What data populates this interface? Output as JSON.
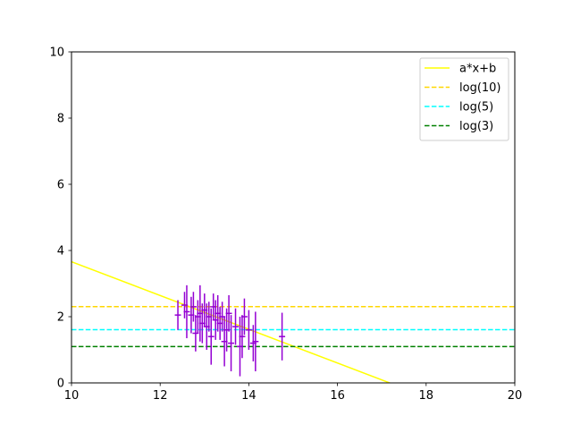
{
  "chart_data": {
    "type": "scatter",
    "title": "",
    "xlabel": "",
    "ylabel": "",
    "xlim": [
      10,
      20
    ],
    "ylim": [
      0,
      10
    ],
    "grid": false,
    "x_ticks": [
      "10",
      "12",
      "14",
      "16",
      "18",
      "20"
    ],
    "y_ticks": [
      "0",
      "2",
      "4",
      "6",
      "8",
      "10"
    ],
    "legend": {
      "placement": "top-right",
      "entries": [
        "a*x+b",
        "log(10)",
        "log(5)",
        "log(3)"
      ]
    },
    "lines": [
      {
        "name": "a*x+b",
        "kind": "linear",
        "slope": -0.51,
        "intercept": 8.76,
        "color": "#ffff00",
        "dash": "solid"
      },
      {
        "name": "log(10)",
        "kind": "hline",
        "y": 2.302585,
        "color": "#ffd700",
        "dash": "dashed"
      },
      {
        "name": "log(5)",
        "kind": "hline",
        "y": 1.609438,
        "color": "#00ffff",
        "dash": "dashed"
      },
      {
        "name": "log(3)",
        "kind": "hline",
        "y": 1.098612,
        "color": "#008000",
        "dash": "dashed"
      }
    ],
    "errorbar_series": {
      "color": "#9400d3",
      "points": [
        {
          "x": 12.4,
          "y": 2.05,
          "yerr": 0.45,
          "xerr": 0.07
        },
        {
          "x": 12.55,
          "y": 2.35,
          "yerr": 0.4,
          "xerr": 0.07
        },
        {
          "x": 12.6,
          "y": 2.15,
          "yerr": 0.8,
          "xerr": 0.07
        },
        {
          "x": 12.7,
          "y": 2.05,
          "yerr": 0.55,
          "xerr": 0.07
        },
        {
          "x": 12.75,
          "y": 2.3,
          "yerr": 0.45,
          "xerr": 0.07
        },
        {
          "x": 12.8,
          "y": 1.5,
          "yerr": 0.55,
          "xerr": 0.07
        },
        {
          "x": 12.85,
          "y": 2.0,
          "yerr": 0.5,
          "xerr": 0.07
        },
        {
          "x": 12.9,
          "y": 2.1,
          "yerr": 0.85,
          "xerr": 0.07
        },
        {
          "x": 12.95,
          "y": 1.8,
          "yerr": 0.6,
          "xerr": 0.07
        },
        {
          "x": 13.0,
          "y": 2.2,
          "yerr": 0.5,
          "xerr": 0.07
        },
        {
          "x": 13.05,
          "y": 1.7,
          "yerr": 0.7,
          "xerr": 0.07
        },
        {
          "x": 13.1,
          "y": 2.0,
          "yerr": 0.45,
          "xerr": 0.07
        },
        {
          "x": 13.15,
          "y": 1.4,
          "yerr": 0.85,
          "xerr": 0.07
        },
        {
          "x": 13.2,
          "y": 2.3,
          "yerr": 0.4,
          "xerr": 0.07
        },
        {
          "x": 13.25,
          "y": 1.9,
          "yerr": 0.6,
          "xerr": 0.07
        },
        {
          "x": 13.3,
          "y": 2.1,
          "yerr": 0.55,
          "xerr": 0.07
        },
        {
          "x": 13.35,
          "y": 1.8,
          "yerr": 0.5,
          "xerr": 0.07
        },
        {
          "x": 13.4,
          "y": 2.0,
          "yerr": 0.45,
          "xerr": 0.07
        },
        {
          "x": 13.45,
          "y": 1.25,
          "yerr": 0.75,
          "xerr": 0.07
        },
        {
          "x": 13.5,
          "y": 1.6,
          "yerr": 0.65,
          "xerr": 0.07
        },
        {
          "x": 13.55,
          "y": 2.1,
          "yerr": 0.55,
          "xerr": 0.07
        },
        {
          "x": 13.6,
          "y": 1.2,
          "yerr": 0.85,
          "xerr": 0.07
        },
        {
          "x": 13.7,
          "y": 1.7,
          "yerr": 0.55,
          "xerr": 0.07
        },
        {
          "x": 13.8,
          "y": 1.1,
          "yerr": 0.9,
          "xerr": 0.07
        },
        {
          "x": 13.85,
          "y": 1.4,
          "yerr": 0.65,
          "xerr": 0.07
        },
        {
          "x": 13.9,
          "y": 2.0,
          "yerr": 0.55,
          "xerr": 0.07
        },
        {
          "x": 14.0,
          "y": 1.6,
          "yerr": 0.6,
          "xerr": 0.07
        },
        {
          "x": 14.1,
          "y": 1.2,
          "yerr": 0.55,
          "xerr": 0.07
        },
        {
          "x": 14.15,
          "y": 1.25,
          "yerr": 0.9,
          "xerr": 0.07
        },
        {
          "x": 14.75,
          "y": 1.4,
          "yerr": 0.72,
          "xerr": 0.07
        }
      ]
    }
  }
}
